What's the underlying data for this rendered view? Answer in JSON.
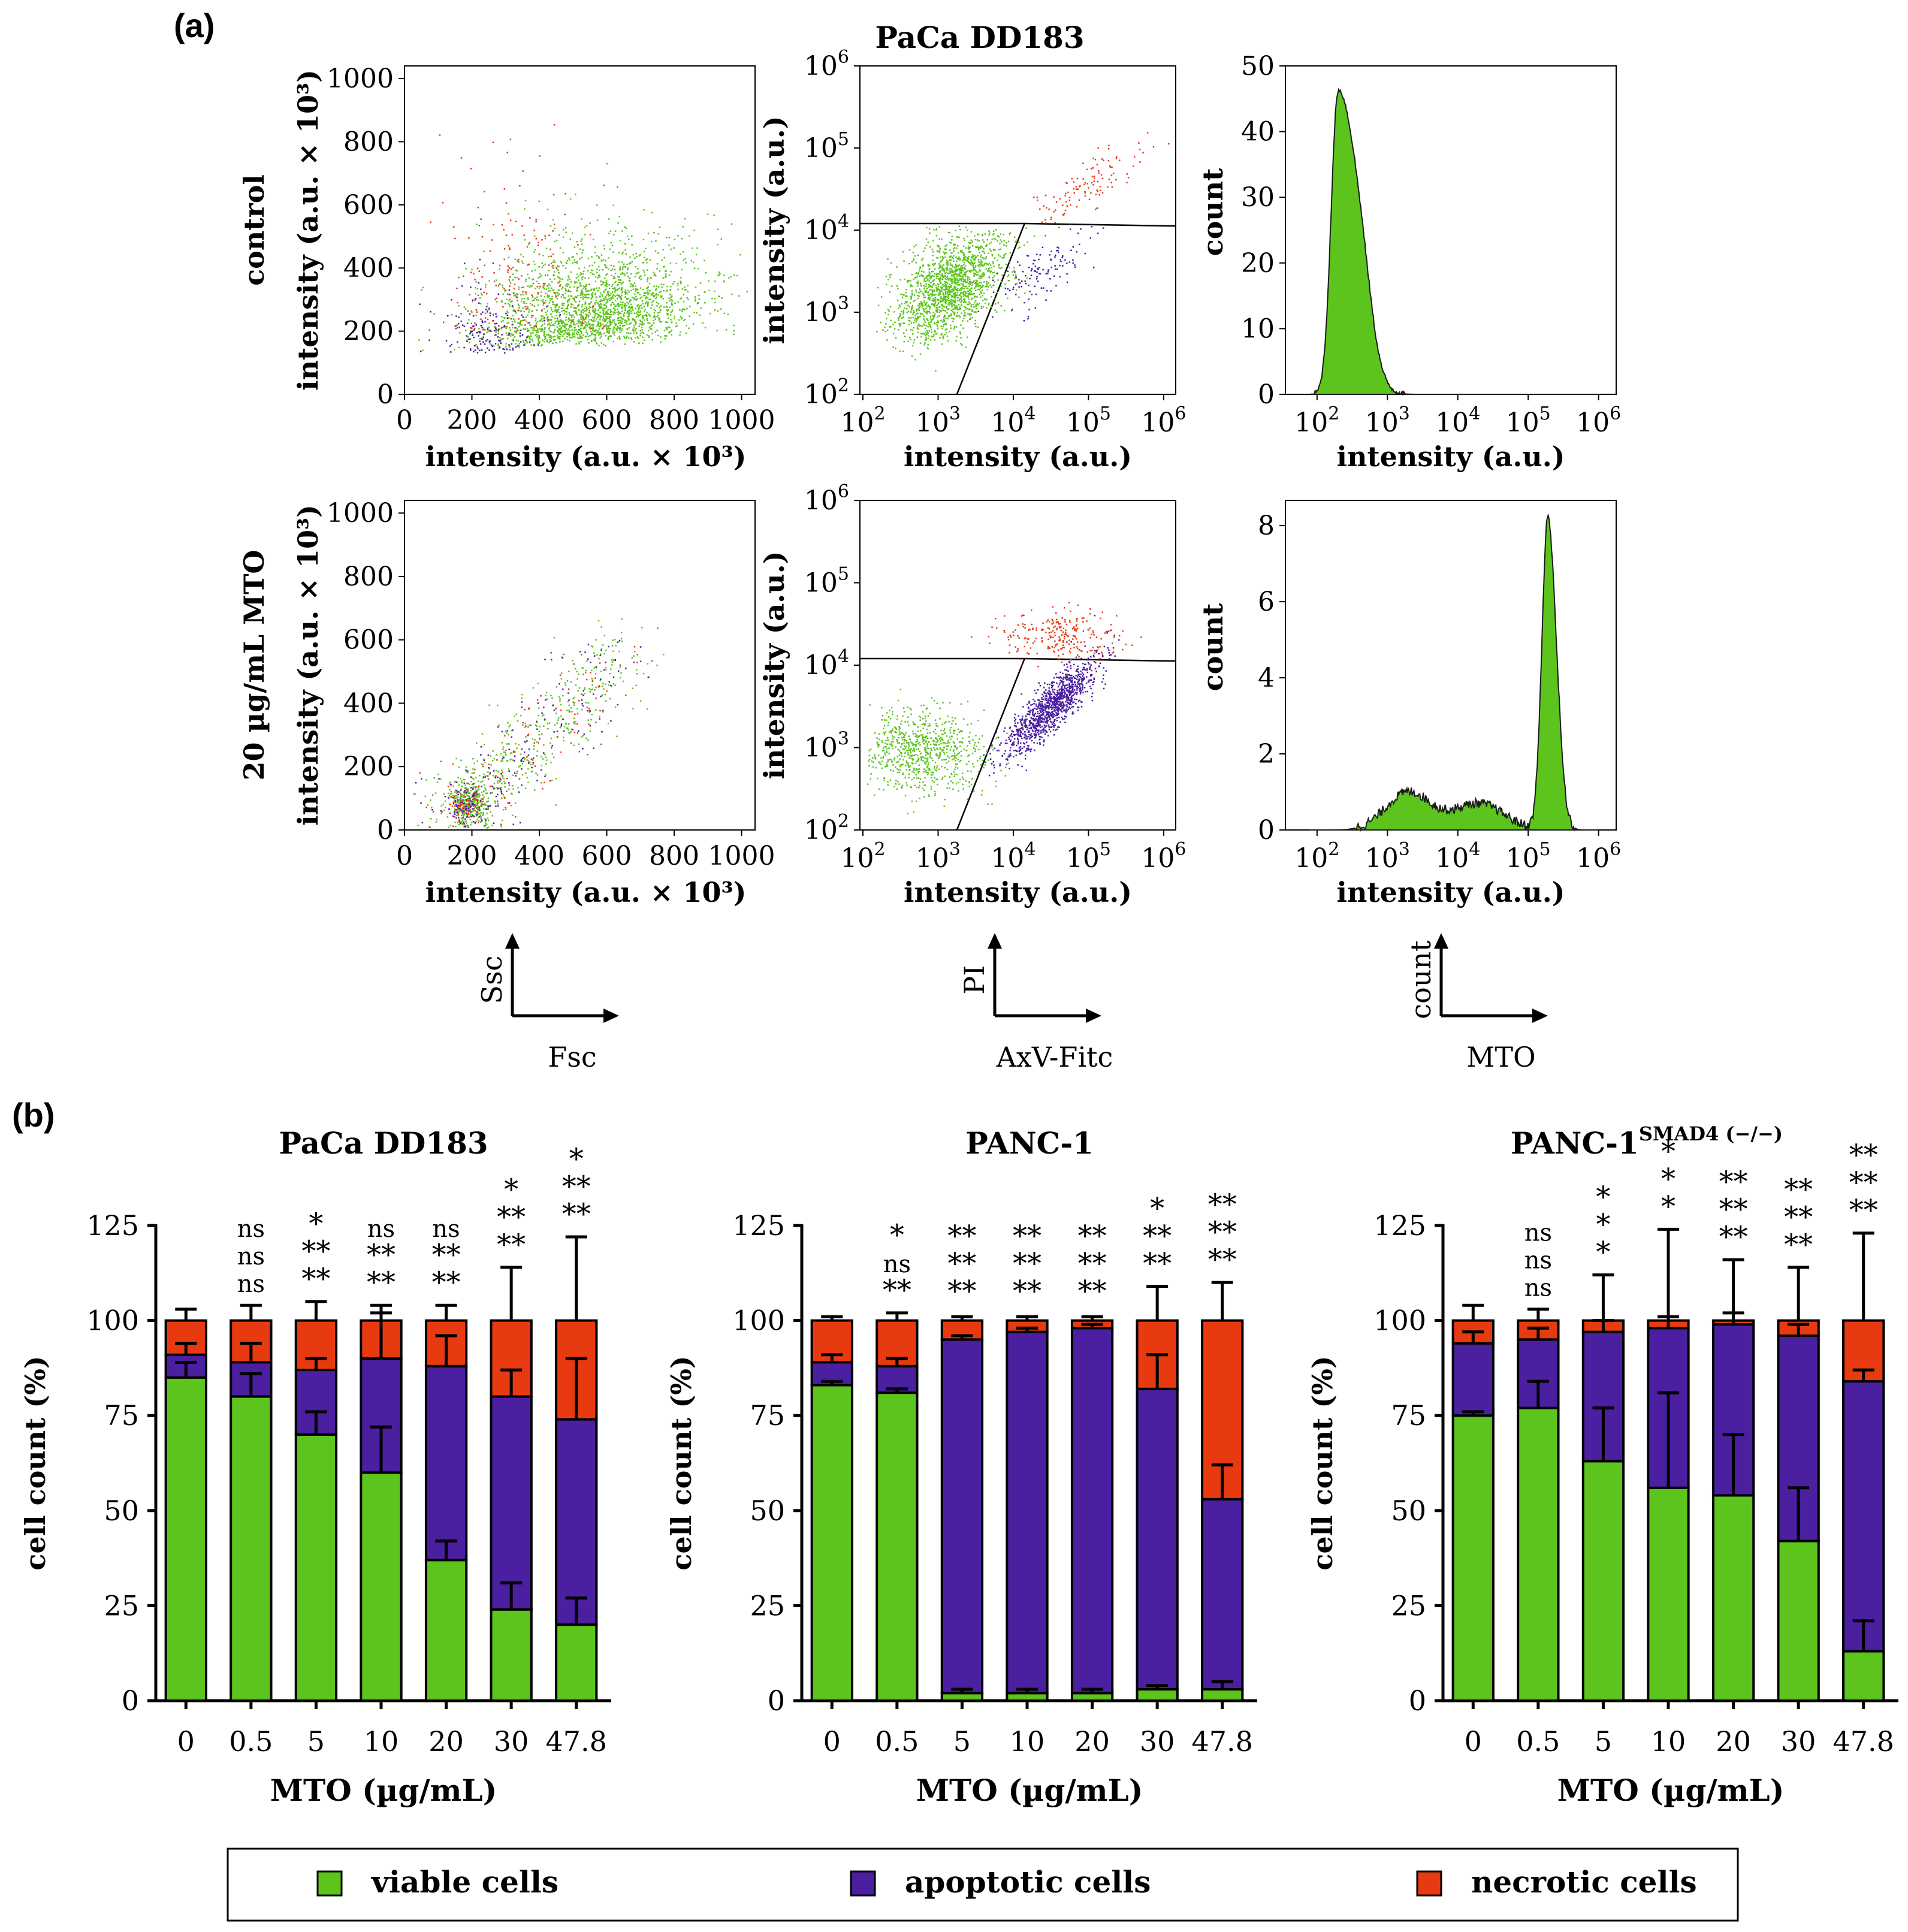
{
  "figure": {
    "panel_a_label": "(a)",
    "panel_b_label": "(b)"
  },
  "panel_a": {
    "title": "PaCa DD183",
    "row_labels": [
      "control",
      "20 µg/mL MTO"
    ],
    "scatter_fsc_ssc": {
      "xlabel": "intensity (a.u. × 10³)",
      "ylabel": "intensity (a.u. × 10³)",
      "xticks": [
        "0",
        "200",
        "400",
        "600",
        "800",
        "1000"
      ],
      "yticks": [
        "0",
        "200",
        "400",
        "600",
        "800",
        "1000"
      ]
    },
    "scatter_axv_pi": {
      "xlabel": "intensity (a.u.)",
      "ylabel": "intensity (a.u.)",
      "xticks": [
        "10",
        "10",
        "10",
        "10",
        "10"
      ],
      "xexps": [
        "2",
        "3",
        "4",
        "5",
        "6"
      ],
      "yticks": [
        "10",
        "10",
        "10",
        "10",
        "10"
      ],
      "yexps": [
        "2",
        "3",
        "4",
        "5",
        "6"
      ]
    },
    "histogram_mto": {
      "xlabel": "intensity (a.u.)",
      "ylabel": "count",
      "xticks": [
        "10",
        "10",
        "10",
        "10",
        "10"
      ],
      "xexps": [
        "2",
        "3",
        "4",
        "5",
        "6"
      ],
      "yticks_control": [
        "0",
        "10",
        "20",
        "30",
        "40",
        "50"
      ],
      "yticks_treated": [
        "0",
        "2",
        "4",
        "6",
        "8"
      ]
    },
    "axis_keys": [
      {
        "y": "Ssc",
        "x": "Fsc"
      },
      {
        "y": "PI",
        "x": "AxV-Fitc"
      },
      {
        "y": "count",
        "x": "MTO"
      }
    ]
  },
  "colors": {
    "viable": "#5cc41c",
    "apoptotic": "#4a1fa0",
    "necrotic": "#e83a10"
  },
  "chart_data": [
    {
      "type": "bar",
      "stacked": true,
      "title": "PaCa DD183",
      "xlabel": "MTO (µg/mL)",
      "ylabel": "cell count (%)",
      "ylim": [
        0,
        125
      ],
      "yticks": [
        "0",
        "25",
        "50",
        "75",
        "100",
        "125"
      ],
      "categories": [
        "0",
        "0.5",
        "5",
        "10",
        "20",
        "30",
        "47.8"
      ],
      "series": [
        {
          "name": "viable cells",
          "values": [
            85,
            80,
            70,
            60,
            37,
            24,
            20
          ],
          "errors": [
            4,
            6,
            6,
            12,
            5,
            7,
            7
          ]
        },
        {
          "name": "apoptotic cells",
          "values": [
            6,
            9,
            17,
            30,
            51,
            56,
            54
          ],
          "errors": [
            3,
            5,
            3,
            12,
            8,
            7,
            16
          ]
        },
        {
          "name": "necrotic cells",
          "values": [
            9,
            11,
            13,
            10,
            12,
            20,
            26
          ],
          "errors": [
            3,
            4,
            5,
            4,
            4,
            14,
            22
          ]
        }
      ],
      "significance": [
        {
          "necrotic": "",
          "apoptotic": "",
          "viable": ""
        },
        {
          "necrotic": "ns",
          "apoptotic": "ns",
          "viable": "ns"
        },
        {
          "necrotic": "*",
          "apoptotic": "**",
          "viable": "**"
        },
        {
          "necrotic": "ns",
          "apoptotic": "**",
          "viable": "**"
        },
        {
          "necrotic": "ns",
          "apoptotic": "**",
          "viable": "**"
        },
        {
          "necrotic": "*",
          "apoptotic": "**",
          "viable": "**"
        },
        {
          "necrotic": "*",
          "apoptotic": "**",
          "viable": "**"
        }
      ]
    },
    {
      "type": "bar",
      "stacked": true,
      "title": "PANC-1",
      "xlabel": "MTO (µg/mL)",
      "ylabel": "cell count (%)",
      "ylim": [
        0,
        125
      ],
      "yticks": [
        "0",
        "25",
        "50",
        "75",
        "100",
        "125"
      ],
      "categories": [
        "0",
        "0.5",
        "5",
        "10",
        "20",
        "30",
        "47.8"
      ],
      "series": [
        {
          "name": "viable cells",
          "values": [
            83,
            81,
            2,
            2,
            2,
            3,
            3
          ],
          "errors": [
            1,
            1,
            1,
            1,
            1,
            1,
            2
          ]
        },
        {
          "name": "apoptotic cells",
          "values": [
            6,
            7,
            93,
            95,
            96,
            79,
            50
          ],
          "errors": [
            2,
            2,
            1,
            1,
            1,
            9,
            9
          ]
        },
        {
          "name": "necrotic cells",
          "values": [
            11,
            12,
            5,
            3,
            2,
            18,
            47
          ],
          "errors": [
            1,
            2,
            1,
            1,
            1,
            9,
            10
          ]
        }
      ],
      "significance": [
        {
          "necrotic": "",
          "apoptotic": "",
          "viable": ""
        },
        {
          "necrotic": "*",
          "apoptotic": "ns",
          "viable": "**"
        },
        {
          "necrotic": "**",
          "apoptotic": "**",
          "viable": "**"
        },
        {
          "necrotic": "**",
          "apoptotic": "**",
          "viable": "**"
        },
        {
          "necrotic": "**",
          "apoptotic": "**",
          "viable": "**"
        },
        {
          "necrotic": "*",
          "apoptotic": "**",
          "viable": "**"
        },
        {
          "necrotic": "**",
          "apoptotic": "**",
          "viable": "**"
        }
      ]
    },
    {
      "type": "bar",
      "stacked": true,
      "title": "PANC-1",
      "title_sup": "SMAD4 (−/−)",
      "xlabel": "MTO (µg/mL)",
      "ylabel": "cell count (%)",
      "ylim": [
        0,
        125
      ],
      "yticks": [
        "0",
        "25",
        "50",
        "75",
        "100",
        "125"
      ],
      "categories": [
        "0",
        "0.5",
        "5",
        "10",
        "20",
        "30",
        "47.8"
      ],
      "series": [
        {
          "name": "viable cells",
          "values": [
            75,
            77,
            63,
            56,
            54,
            42,
            13
          ],
          "errors": [
            1,
            7,
            14,
            25,
            16,
            14,
            8
          ]
        },
        {
          "name": "apoptotic cells",
          "values": [
            19,
            18,
            34,
            42,
            45,
            54,
            71
          ],
          "errors": [
            3,
            3,
            3,
            3,
            3,
            3,
            3
          ]
        },
        {
          "name": "necrotic cells",
          "values": [
            6,
            5,
            3,
            2,
            1,
            4,
            16
          ],
          "errors": [
            4,
            3,
            12,
            24,
            16,
            14,
            23
          ]
        }
      ],
      "significance": [
        {
          "necrotic": "",
          "apoptotic": "",
          "viable": ""
        },
        {
          "necrotic": "ns",
          "apoptotic": "ns",
          "viable": "ns"
        },
        {
          "necrotic": "*",
          "apoptotic": "*",
          "viable": "*"
        },
        {
          "necrotic": "*",
          "apoptotic": "*",
          "viable": "*"
        },
        {
          "necrotic": "**",
          "apoptotic": "**",
          "viable": "**"
        },
        {
          "necrotic": "**",
          "apoptotic": "**",
          "viable": "**"
        },
        {
          "necrotic": "**",
          "apoptotic": "**",
          "viable": "**"
        }
      ]
    }
  ],
  "legend": {
    "items": [
      {
        "key": "viable",
        "label": "viable cells"
      },
      {
        "key": "apoptotic",
        "label": "apoptotic cells"
      },
      {
        "key": "necrotic",
        "label": "necrotic cells"
      }
    ]
  }
}
